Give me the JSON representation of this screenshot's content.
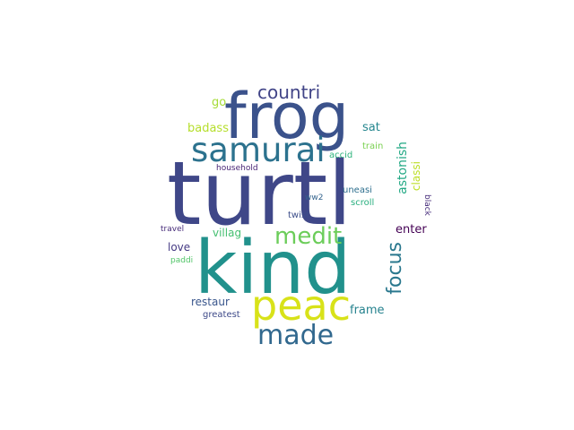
{
  "words": [
    {
      "text": "kind",
      "color": "#21918c"
    },
    {
      "text": "turtl",
      "color": "#3f4788"
    },
    {
      "text": "frog",
      "color": "#3b528b"
    },
    {
      "text": "peac",
      "color": "#d8e219"
    },
    {
      "text": "samurai",
      "color": "#2c728e"
    },
    {
      "text": "made",
      "color": "#31688e"
    },
    {
      "text": "medit",
      "color": "#6ccd5a"
    },
    {
      "text": "countri",
      "color": "#414487"
    },
    {
      "text": "focus",
      "color": "#2a788e"
    },
    {
      "text": "astonish",
      "color": "#22a884"
    },
    {
      "text": "classi",
      "color": "#bddf26"
    },
    {
      "text": "badass",
      "color": "#b5de2b"
    },
    {
      "text": "sat",
      "color": "#24868e"
    },
    {
      "text": "go",
      "color": "#a5db36"
    },
    {
      "text": "train",
      "color": "#7ad151"
    },
    {
      "text": "accid",
      "color": "#2fb47c"
    },
    {
      "text": "household",
      "color": "#482475"
    },
    {
      "text": "uneasi",
      "color": "#2e6f8e"
    },
    {
      "text": "scroll",
      "color": "#29af7f"
    },
    {
      "text": "black",
      "color": "#472d7b"
    },
    {
      "text": "ww2",
      "color": "#33638d"
    },
    {
      "text": "twist",
      "color": "#3d4e8a"
    },
    {
      "text": "villag",
      "color": "#44bf70"
    },
    {
      "text": "travel",
      "color": "#472c7a"
    },
    {
      "text": "enter",
      "color": "#440154"
    },
    {
      "text": "love",
      "color": "#443983"
    },
    {
      "text": "paddi",
      "color": "#52c569"
    },
    {
      "text": "frame",
      "color": "#26828e"
    },
    {
      "text": "restaur",
      "color": "#39568c"
    },
    {
      "text": "greatest",
      "color": "#3e4a89"
    }
  ]
}
